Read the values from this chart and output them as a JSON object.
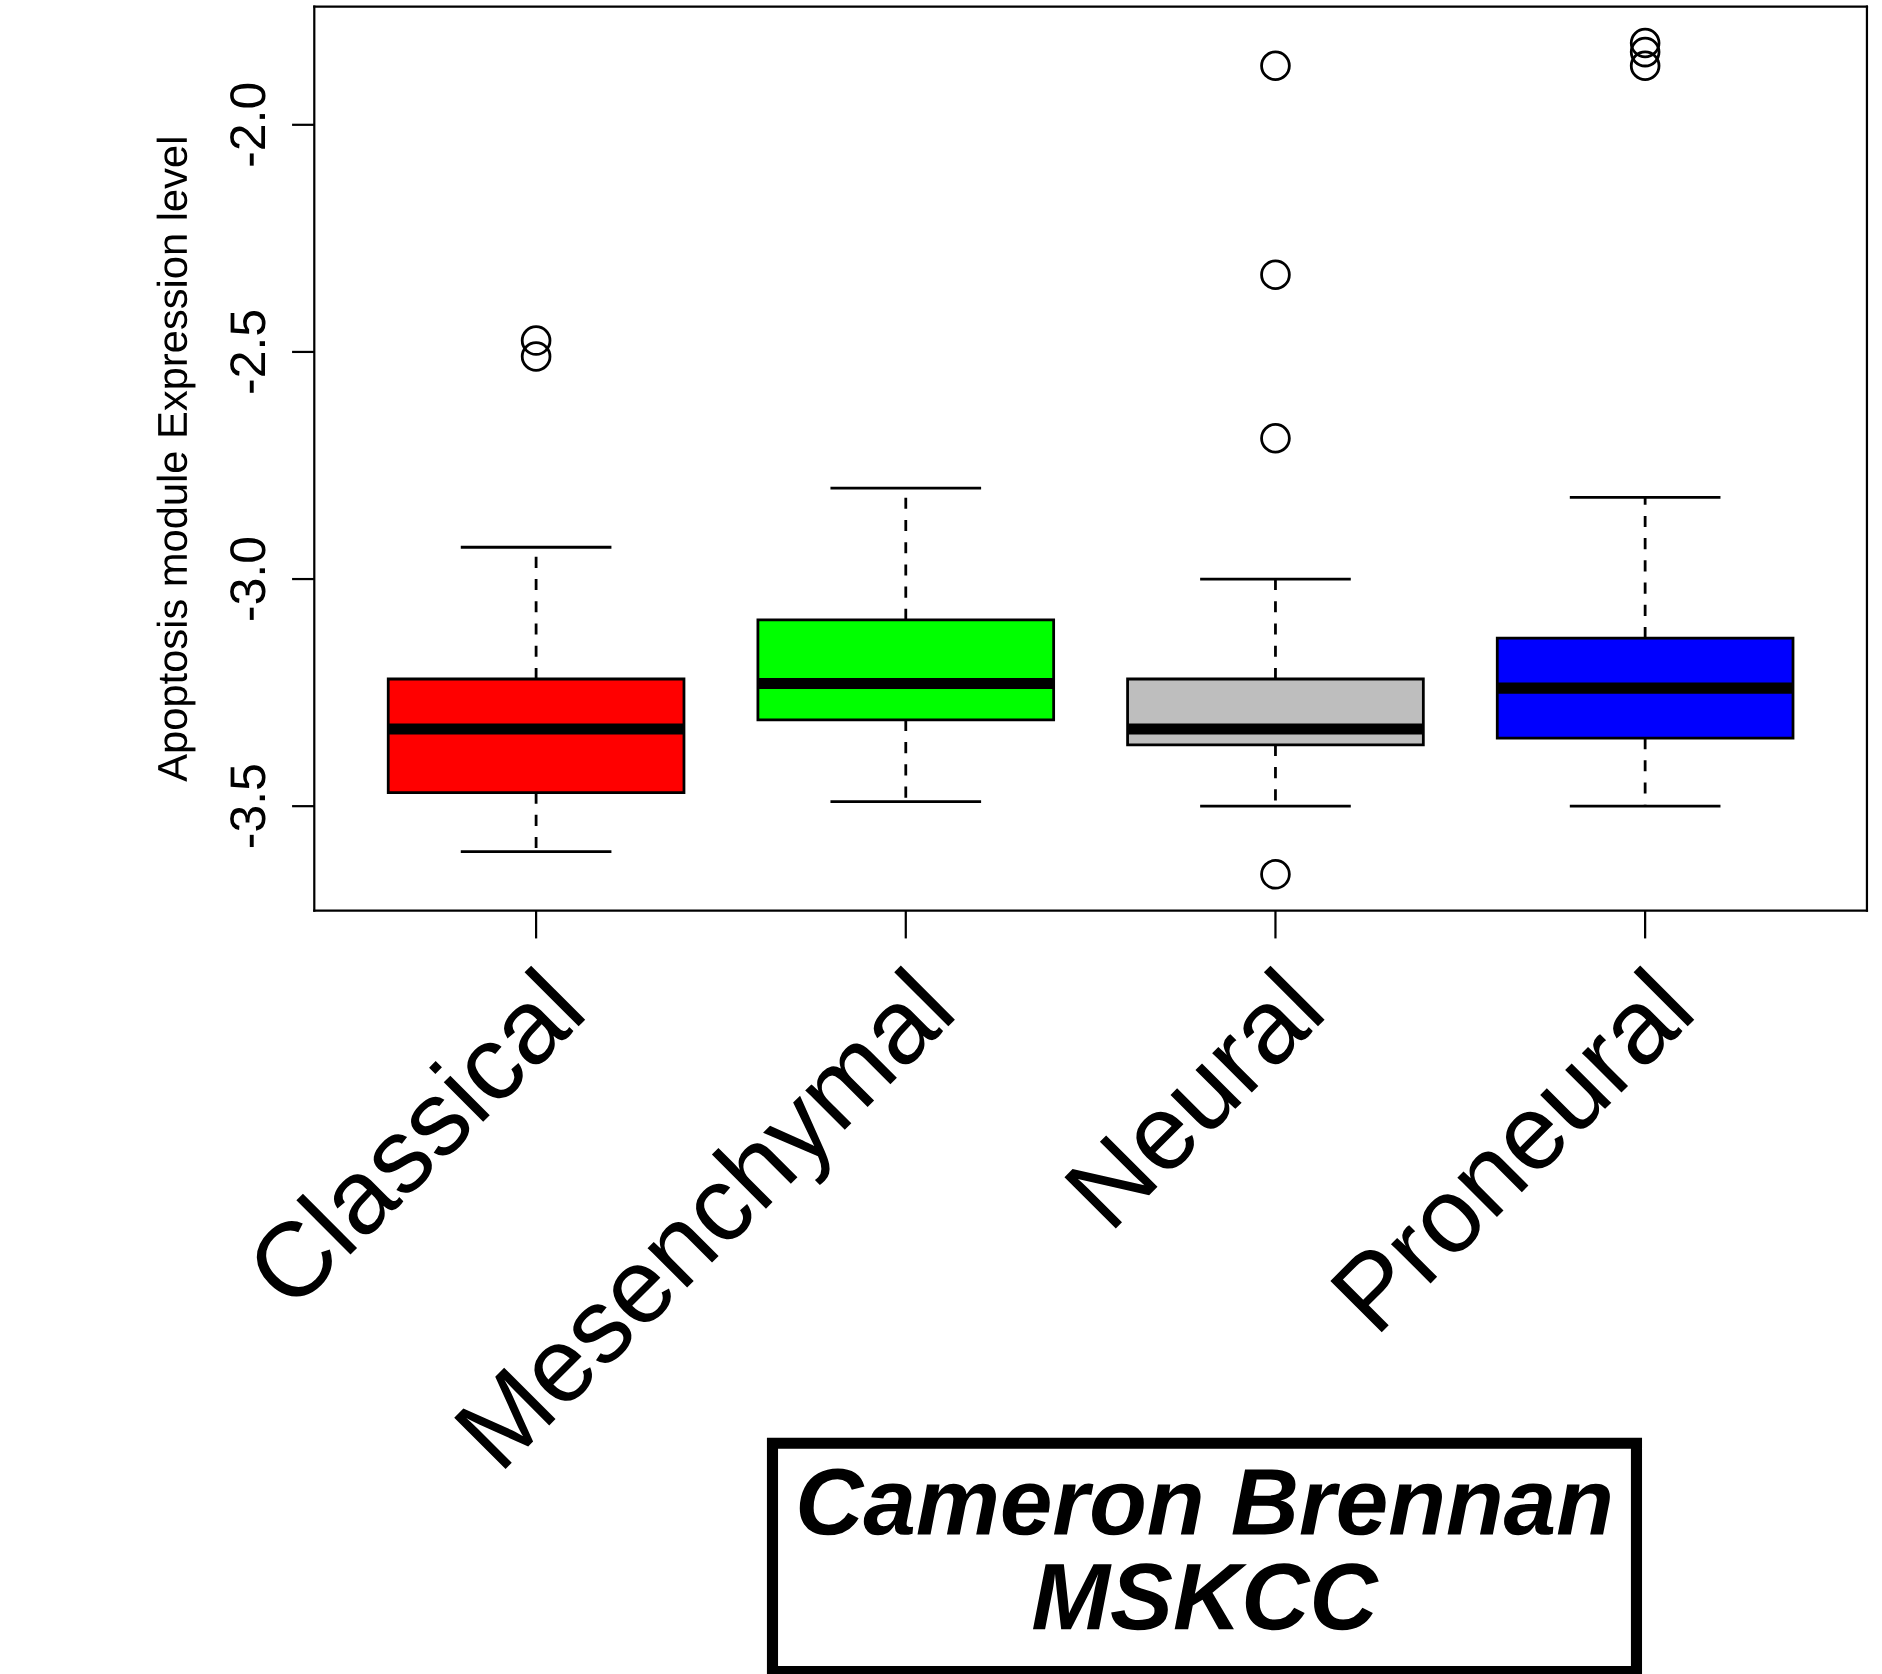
{
  "chart_data": {
    "type": "box",
    "ylabel": "Apoptosis module Expression level",
    "categories": [
      "Classical",
      "Mesenchymal",
      "Neural",
      "Proneural"
    ],
    "colors": [
      "#ff0000",
      "#00ff00",
      "#bebebe",
      "#0000ff"
    ],
    "boxes": [
      {
        "low": -3.6,
        "q1": -3.47,
        "median": -3.33,
        "q3": -3.22,
        "high": -2.93,
        "outliers": [
          -2.475,
          -2.51
        ]
      },
      {
        "low": -3.49,
        "q1": -3.31,
        "median": -3.23,
        "q3": -3.09,
        "high": -2.8
      },
      {
        "low": -3.5,
        "q1": -3.365,
        "median": -3.33,
        "q3": -3.22,
        "high": -3.0,
        "outliers": [
          -1.87,
          -2.33,
          -2.69,
          -3.65
        ]
      },
      {
        "low": -3.5,
        "q1": -3.35,
        "median": -3.24,
        "q3": -3.13,
        "high": -2.82,
        "outliers": [
          -1.82,
          -1.84,
          -1.87
        ]
      }
    ],
    "ylim": [
      -3.73,
      -1.74
    ],
    "yticks": [
      -3.5,
      {
        "value": -3.0,
        "label": "-3.0"
      },
      -2.5,
      {
        "value": -2.0,
        "label": "-2.0"
      }
    ],
    "grid": false,
    "annotations": [
      "Cameron Brennan\nMSKCC"
    ]
  }
}
